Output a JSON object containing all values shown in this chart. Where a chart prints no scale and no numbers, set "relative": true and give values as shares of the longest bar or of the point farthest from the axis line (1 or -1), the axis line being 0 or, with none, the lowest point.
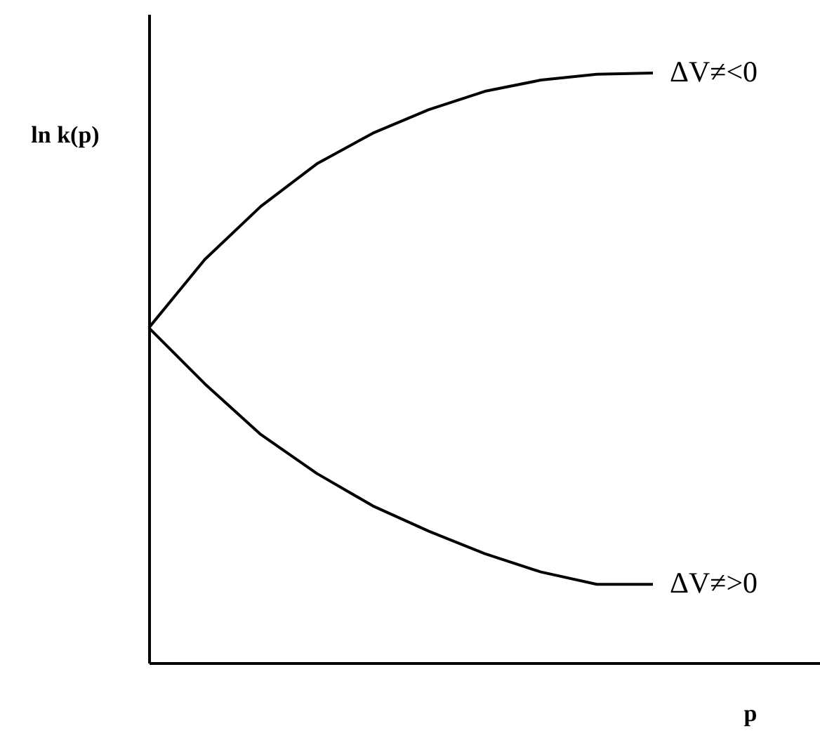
{
  "chart_data": {
    "type": "line",
    "relative": true,
    "xlabel": "p",
    "ylabel": "ln k(p)",
    "marker": "none",
    "line_style": "solid",
    "categories": [
      null,
      null,
      null,
      null,
      null,
      null,
      null,
      null,
      null,
      null
    ],
    "series": [
      {
        "name": "ΔV≠<0",
        "color": "#000000",
        "values": [
          0.568,
          0.684,
          0.774,
          0.846,
          0.898,
          0.938,
          0.969,
          0.988,
          0.998,
          1
        ]
      },
      {
        "name": "ΔV≠>0",
        "color": "#000000",
        "values": [
          0.568,
          0.473,
          0.387,
          0.321,
          0.266,
          0.223,
          0.185,
          0.154,
          0.133,
          0.133
        ]
      }
    ]
  }
}
